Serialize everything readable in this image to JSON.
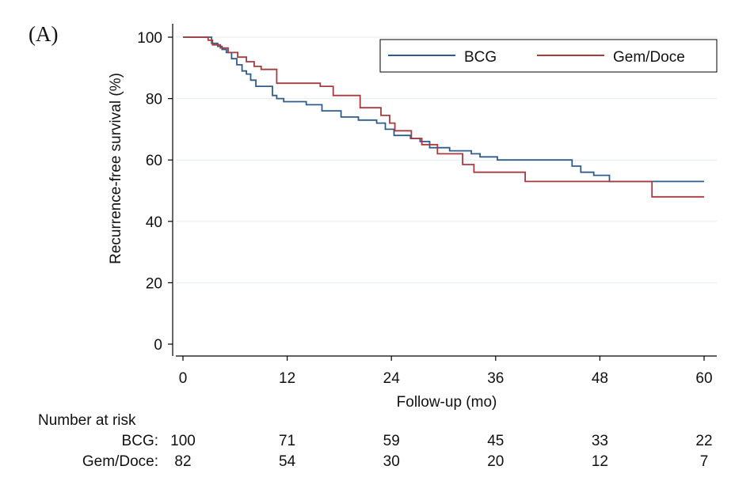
{
  "chart_data": {
    "type": "line",
    "panel_label": "(A)",
    "xlabel": "Follow-up (mo)",
    "ylabel": "Recurrence-free survival (%)",
    "xlim": [
      0,
      60
    ],
    "ylim": [
      0,
      100
    ],
    "x_ticks": [
      0,
      12,
      24,
      36,
      48,
      60
    ],
    "y_ticks": [
      0,
      20,
      40,
      60,
      80,
      100
    ],
    "grid": "horizontal",
    "legend_position": "top-right",
    "series": [
      {
        "name": "BCG",
        "color": "#2f5c8a",
        "x": [
          0,
          2.8,
          3.3,
          4.0,
          4.5,
          5.0,
          5.6,
          6.2,
          6.8,
          7.3,
          7.8,
          8.4,
          9.0,
          10.3,
          10.8,
          11.6,
          14.2,
          16.0,
          18.2,
          20.2,
          22.3,
          23.3,
          24.3,
          26.2,
          27.3,
          28.4,
          30.7,
          33.2,
          34.2,
          36.2,
          44.8,
          45.8,
          47.3,
          49.1,
          60
        ],
        "y": [
          100,
          100,
          98.0,
          97.0,
          96.0,
          95.0,
          93.0,
          91.0,
          89.0,
          88.0,
          86.0,
          84.0,
          84.0,
          81.0,
          80.0,
          79.0,
          78.0,
          76.0,
          74.0,
          73.0,
          72.0,
          70.0,
          68.0,
          67.0,
          66.0,
          64.0,
          63.0,
          62.0,
          61.0,
          60.0,
          58.0,
          56.0,
          55.0,
          53.0,
          53.0
        ]
      },
      {
        "name": "Gem/Doce",
        "color": "#a83a3f",
        "x": [
          0,
          2.9,
          3.4,
          4.3,
          5.2,
          6.3,
          7.3,
          8.2,
          9.0,
          10.4,
          10.8,
          15.8,
          17.3,
          20.4,
          22.8,
          23.8,
          24.4,
          26.3,
          27.5,
          29.3,
          32.2,
          33.5,
          39.4,
          54.0,
          60
        ],
        "y": [
          100,
          99.0,
          97.5,
          96.5,
          95.0,
          93.5,
          92.0,
          90.5,
          89.5,
          89.5,
          85.0,
          84.0,
          81.0,
          77.0,
          74.5,
          72.0,
          69.5,
          67.0,
          65.0,
          62.0,
          58.5,
          56.0,
          53.0,
          48.0,
          48.0
        ]
      }
    ],
    "risk_table": {
      "title": "Number at risk",
      "times": [
        0,
        12,
        24,
        36,
        48,
        60
      ],
      "rows": [
        {
          "label": "BCG:",
          "values": [
            "100",
            "71",
            "59",
            "45",
            "33",
            "22"
          ]
        },
        {
          "label": "Gem/Doce:",
          "values": [
            "82",
            "54",
            "30",
            "20",
            "12",
            "7"
          ]
        }
      ]
    }
  }
}
